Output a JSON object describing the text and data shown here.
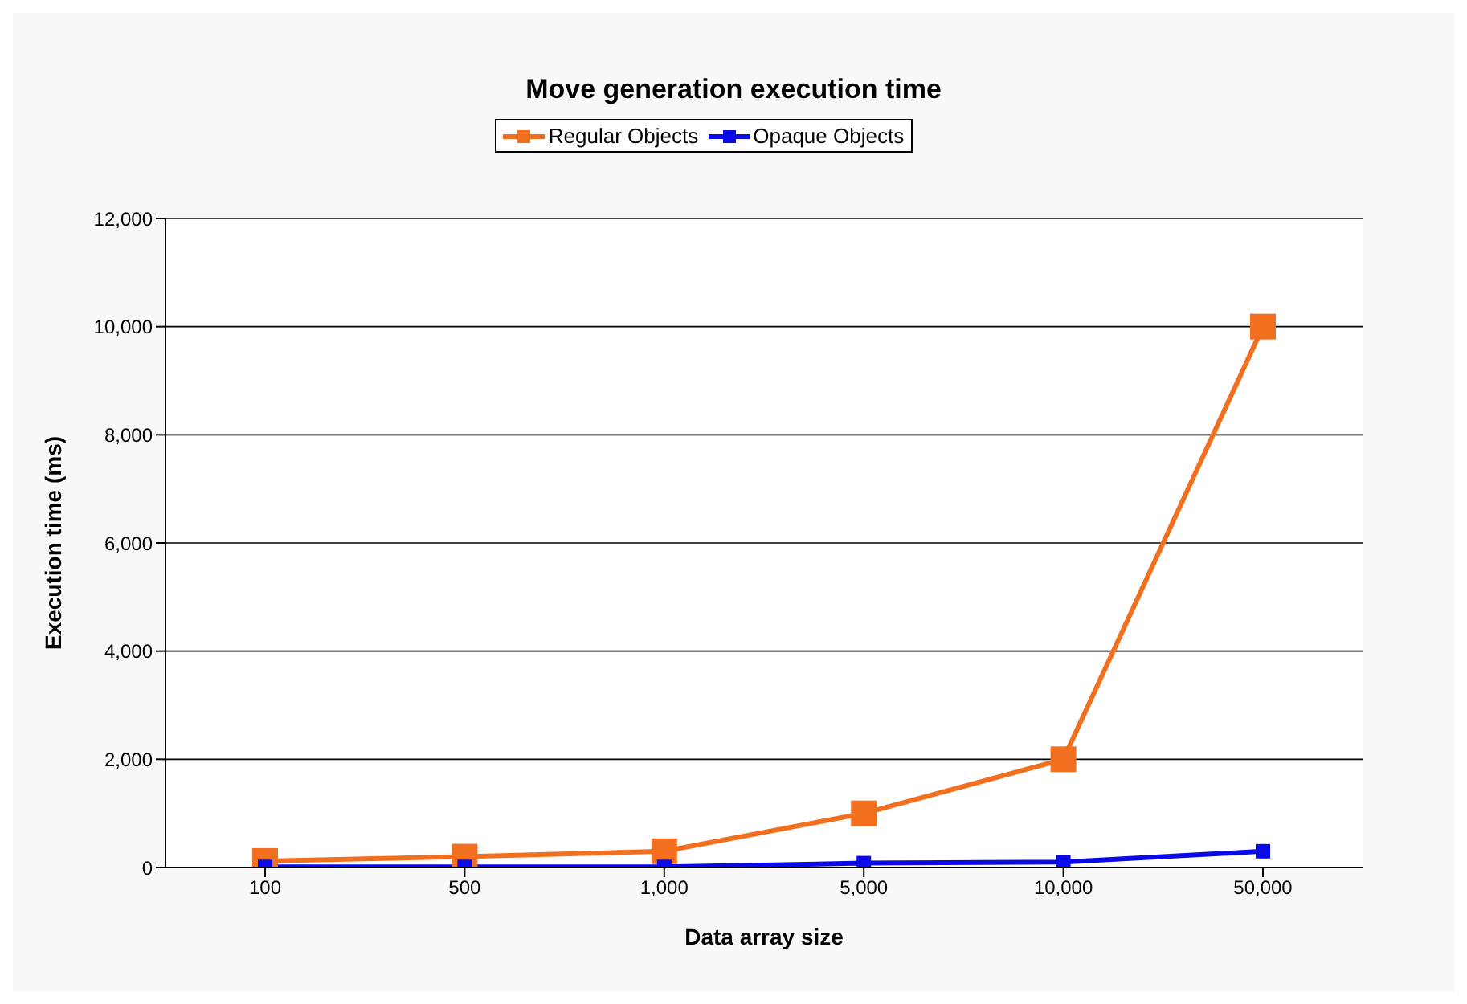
{
  "chart_data": {
    "type": "line",
    "title": "Move generation execution time",
    "xlabel": "Data array size",
    "ylabel": "Execution time (ms)",
    "categories": [
      "100",
      "500",
      "1,000",
      "5,000",
      "10,000",
      "50,000"
    ],
    "series": [
      {
        "name": "Regular Objects",
        "color": "#f26f1f",
        "values": [
          120,
          200,
          300,
          1000,
          2000,
          10000
        ]
      },
      {
        "name": "Opaque Objects",
        "color": "#0a0ae6",
        "values": [
          10,
          10,
          10,
          80,
          100,
          300
        ]
      }
    ],
    "ylim": [
      0,
      12000
    ],
    "yticks": [
      {
        "value": 0,
        "label": "0"
      },
      {
        "value": 2000,
        "label": "2,000"
      },
      {
        "value": 4000,
        "label": "4,000"
      },
      {
        "value": 6000,
        "label": "6,000"
      },
      {
        "value": 8000,
        "label": "8,000"
      },
      {
        "value": 10000,
        "label": "10,000"
      },
      {
        "value": 12000,
        "label": "12,000"
      }
    ],
    "grid": "y",
    "legend": "top",
    "marker": "square"
  }
}
